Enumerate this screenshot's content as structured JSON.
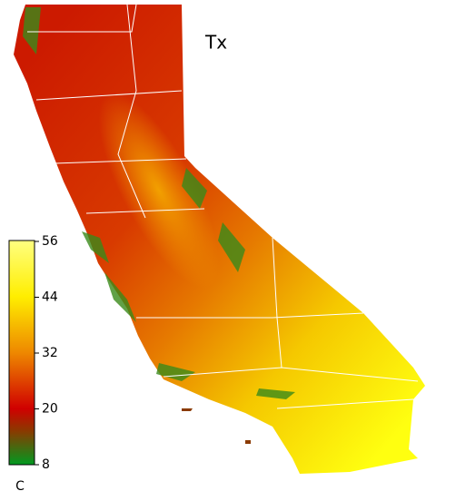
{
  "title": "Tx",
  "colorbar": {
    "unit": "C",
    "lim": [
      8,
      56
    ],
    "ticks": [
      8,
      20,
      32,
      44,
      56
    ]
  }
}
